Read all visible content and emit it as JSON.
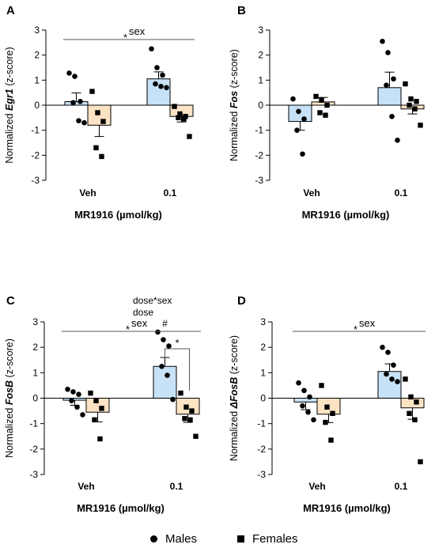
{
  "colors": {
    "males_fill": "#C7E2F7",
    "females_fill": "#FBE3C4",
    "edge": "#000000",
    "line": "#555555"
  },
  "legend": {
    "males": "Males",
    "females": "Females",
    "males_marker": "circle",
    "females_marker": "square"
  },
  "chart_data": [
    {
      "type": "bar",
      "panel": "A",
      "ylabel_pre": "Normalized ",
      "ylabel_italic": "Egr1",
      "ylabel_post": " (z-score)",
      "xlabel": "MR1916 (µmol/kg)",
      "categories": [
        "Veh",
        "0.1"
      ],
      "ylim": [
        -3,
        3
      ],
      "yticks": [
        3,
        2,
        1,
        0,
        -1,
        -2,
        -3
      ],
      "series": [
        {
          "name": "Males",
          "means": [
            0.14,
            1.05
          ],
          "sem": [
            0.35,
            0.28
          ],
          "points": [
            [
              1.28,
              1.15,
              0.15,
              0.1,
              -0.62,
              -0.7
            ],
            [
              2.25,
              1.5,
              1.2,
              0.85,
              0.75,
              0.7
            ]
          ]
        },
        {
          "name": "Females",
          "means": [
            -0.8,
            -0.45
          ],
          "sem": [
            0.45,
            0.22
          ],
          "points": [
            [
              0.55,
              -0.3,
              -0.65,
              -1.7,
              -2.05
            ],
            [
              -0.05,
              -0.35,
              -0.45,
              -0.5,
              -0.55,
              -1.25
            ]
          ]
        }
      ],
      "annotations": [
        {
          "star": "*",
          "text": "sex",
          "bracket": "overall"
        }
      ]
    },
    {
      "type": "bar",
      "panel": "B",
      "ylabel_pre": "Normalized ",
      "ylabel_italic": "Fos",
      "ylabel_post": " (z-score)",
      "xlabel": "MR1916 (µmol/kg)",
      "categories": [
        "Veh",
        "0.1"
      ],
      "ylim": [
        -3,
        3
      ],
      "yticks": [
        3,
        2,
        1,
        0,
        -1,
        -2,
        -3
      ],
      "series": [
        {
          "name": "Males",
          "means": [
            -0.65,
            0.7
          ],
          "sem": [
            0.35,
            0.62
          ],
          "points": [
            [
              0.25,
              -0.25,
              -0.55,
              -1.0,
              -1.95
            ],
            [
              2.55,
              2.1,
              1.05,
              0.8,
              -0.45,
              -1.4
            ]
          ]
        },
        {
          "name": "Females",
          "means": [
            0.13,
            -0.15
          ],
          "sem": [
            0.18,
            0.2
          ],
          "points": [
            [
              0.35,
              0.2,
              0.0,
              -0.3,
              -0.4
            ],
            [
              0.85,
              0.25,
              0.15,
              0.0,
              -0.15,
              -0.8
            ]
          ]
        }
      ],
      "annotations": []
    },
    {
      "type": "bar",
      "panel": "C",
      "ylabel_pre": "Normalized ",
      "ylabel_italic": "FosB",
      "ylabel_post": " (z-score)",
      "xlabel": "MR1916 (µmol/kg)",
      "categories": [
        "Veh",
        "0.1"
      ],
      "ylim": [
        -3,
        3
      ],
      "yticks": [
        3,
        2,
        1,
        0,
        -1,
        -2,
        -3
      ],
      "series": [
        {
          "name": "Males",
          "means": [
            -0.08,
            1.25
          ],
          "sem": [
            0.2,
            0.35
          ],
          "points": [
            [
              0.35,
              0.25,
              0.15,
              -0.1,
              -0.35,
              -0.65
            ],
            [
              2.6,
              2.3,
              2.05,
              1.25,
              0.9,
              -0.05
            ]
          ]
        },
        {
          "name": "Females",
          "means": [
            -0.55,
            -0.63
          ],
          "sem": [
            0.38,
            0.32
          ],
          "points": [
            [
              0.2,
              -0.1,
              -0.4,
              -0.85,
              -1.6
            ],
            [
              0.2,
              -0.35,
              -0.5,
              -0.8,
              -0.85,
              -1.5
            ]
          ]
        }
      ],
      "annotations": [
        {
          "star": "*",
          "text": "sex",
          "bracket": "overall"
        },
        {
          "star": "*",
          "text": "",
          "bracket": "pair"
        },
        {
          "text": "dose"
        },
        {
          "text": "dose*sex"
        },
        {
          "text": "#"
        }
      ]
    },
    {
      "type": "bar",
      "panel": "D",
      "ylabel_pre": "Normalized ",
      "ylabel_italic": "ΔFosB",
      "ylabel_post": " (z-score)",
      "xlabel": "MR1916 (µmol/kg)",
      "categories": [
        "Veh",
        "0.1"
      ],
      "ylim": [
        -3,
        3
      ],
      "yticks": [
        3,
        2,
        1,
        0,
        -1,
        -2,
        -3
      ],
      "series": [
        {
          "name": "Males",
          "means": [
            -0.15,
            1.05
          ],
          "sem": [
            0.3,
            0.3
          ],
          "points": [
            [
              0.6,
              0.3,
              0.05,
              -0.3,
              -0.55,
              -0.85
            ],
            [
              2.0,
              1.8,
              1.3,
              0.95,
              0.75,
              0.65
            ]
          ]
        },
        {
          "name": "Females",
          "means": [
            -0.63,
            -0.38
          ],
          "sem": [
            0.33,
            0.45
          ],
          "points": [
            [
              0.5,
              -0.35,
              -0.6,
              -0.95,
              -1.65
            ],
            [
              0.75,
              0.05,
              -0.15,
              -0.6,
              -0.85,
              -2.5
            ]
          ]
        }
      ],
      "annotations": [
        {
          "star": "*",
          "text": "sex",
          "bracket": "overall"
        }
      ]
    }
  ]
}
